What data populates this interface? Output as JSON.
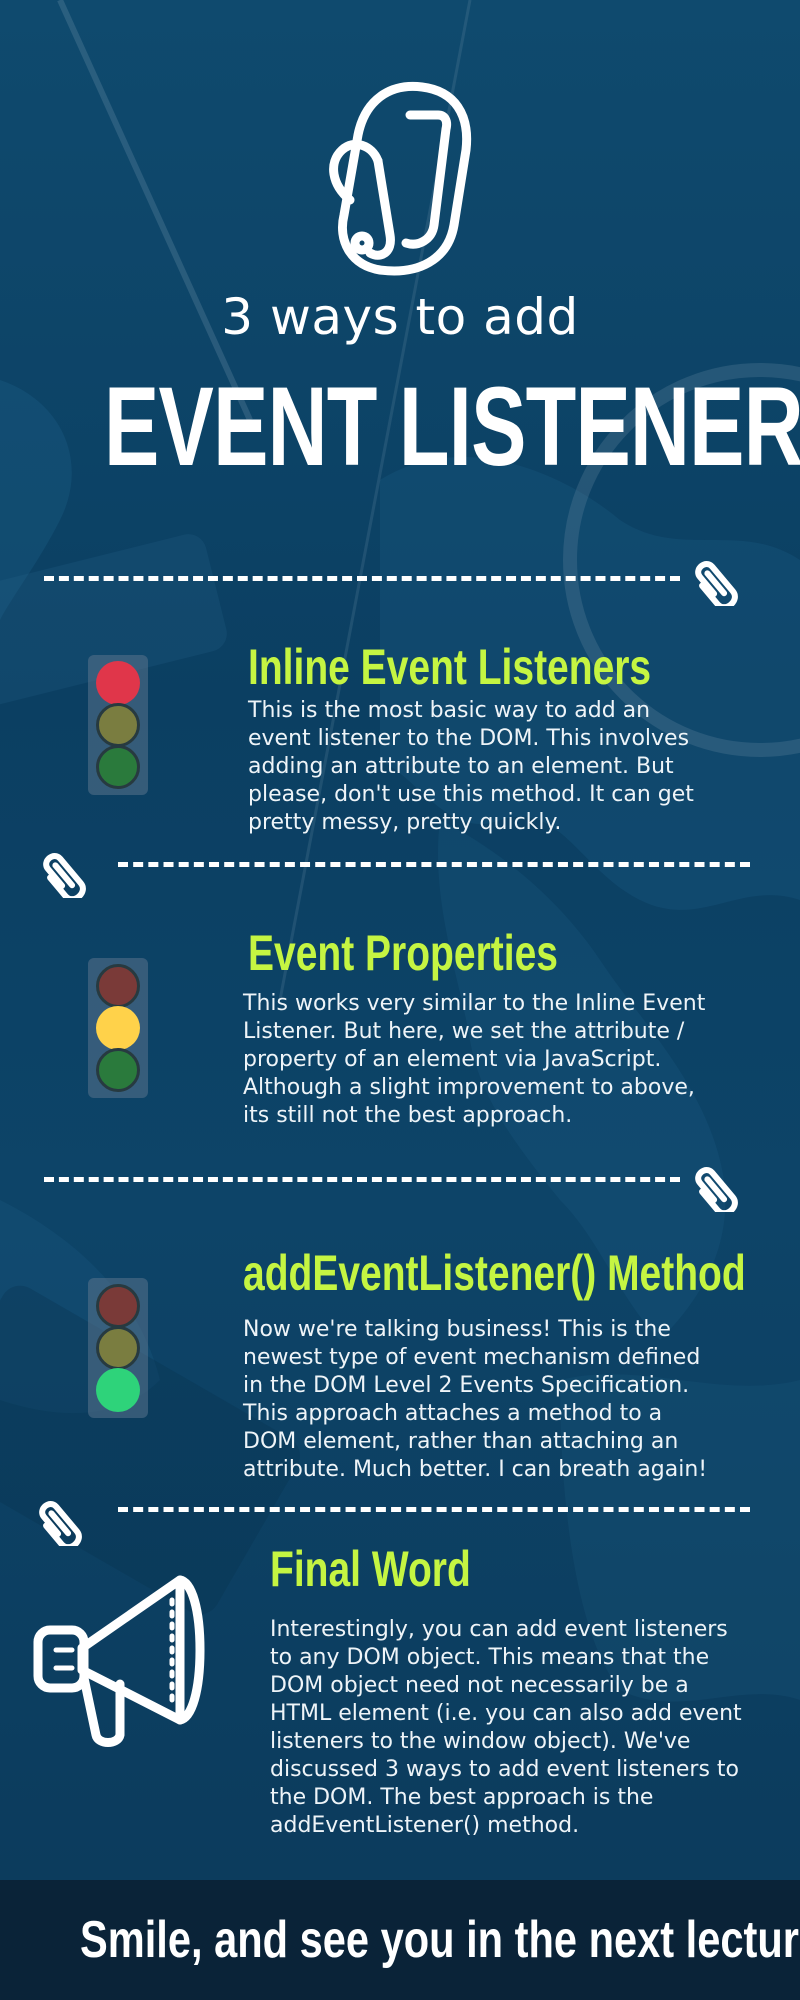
{
  "header": {
    "subtitle": "3 ways to add",
    "title": "EVENT LISTENERS",
    "logo_icon": "carabiner-icon"
  },
  "colors": {
    "accent": "#c5f542",
    "background": "#0d4468",
    "footer_bg": "#0a2338",
    "red": "#e0364a",
    "yellow": "#ffd24a",
    "green": "#2ed37a"
  },
  "sections": [
    {
      "title": "Inline Event Listeners",
      "icon": "traffic-light-red-icon",
      "lines": [
        "This is the most basic way to add an",
        "event listener to the DOM. This involves",
        "adding an attribute to an element. But",
        "please, don't use this method. It can get",
        "pretty messy, pretty quickly."
      ]
    },
    {
      "title": "Event Properties",
      "icon": "traffic-light-yellow-icon",
      "lines": [
        "This works very similar to the Inline Event",
        "Listener. But here, we set the attribute /",
        "property of an element via JavaScript.",
        "Although a slight improvement to above,",
        "its still not the best approach."
      ]
    },
    {
      "title": "addEventListener() Method",
      "icon": "traffic-light-green-icon",
      "lines": [
        "Now we're talking business! This is the",
        "newest type of event mechanism defined",
        "in the DOM Level 2 Events Specification.",
        "This approach attaches a method to a",
        "DOM element, rather than attaching an",
        "attribute. Much better. I can breath again!"
      ]
    },
    {
      "title": "Final Word",
      "icon": "megaphone-icon",
      "lines": [
        "Interestingly, you can add event listeners",
        "to any DOM object. This means that the",
        "DOM object need not necessarily be a",
        "HTML element (i.e. you can also add event",
        "listeners to the window object). We've",
        "discussed 3 ways to add event listeners to",
        "the DOM. The best approach is the",
        "addEventListener() method."
      ]
    }
  ],
  "divider_icon": "paperclip-icon",
  "footer": {
    "text": "Smile, and see you in the next lecture"
  }
}
